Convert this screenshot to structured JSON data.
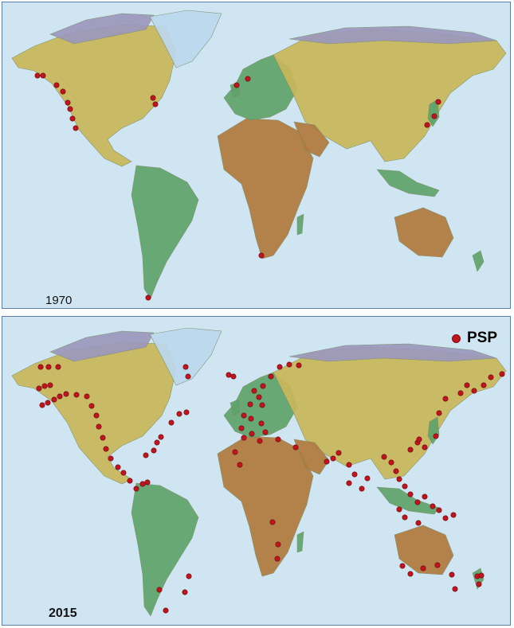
{
  "colors": {
    "ocean": "#cfe6f2",
    "border": "#5b7fa8",
    "marker": "#c0141e",
    "lowland": "#5fa36a",
    "midland": "#c9b85a",
    "highland": "#b07a3c",
    "ice": "#bcd8ee",
    "arctic": "#9c98bd"
  },
  "legend": {
    "label": "PSP",
    "icon": "red-dot-icon"
  },
  "maps": [
    {
      "year_label": "1970",
      "sites": [
        [
          44,
          92
        ],
        [
          51,
          92
        ],
        [
          68,
          104
        ],
        [
          76,
          112
        ],
        [
          82,
          126
        ],
        [
          85,
          134
        ],
        [
          88,
          146
        ],
        [
          92,
          158
        ],
        [
          189,
          120
        ],
        [
          192,
          128
        ],
        [
          294,
          104
        ],
        [
          308,
          96
        ],
        [
          533,
          154
        ],
        [
          542,
          143
        ],
        [
          547,
          125
        ],
        [
          325,
          318
        ],
        [
          183,
          371
        ]
      ]
    },
    {
      "year_label": "2015",
      "sites": [
        [
          48,
          63
        ],
        [
          58,
          63
        ],
        [
          70,
          63
        ],
        [
          46,
          90
        ],
        [
          53,
          87
        ],
        [
          60,
          86
        ],
        [
          50,
          111
        ],
        [
          57,
          108
        ],
        [
          65,
          104
        ],
        [
          72,
          100
        ],
        [
          80,
          97
        ],
        [
          93,
          98
        ],
        [
          106,
          100
        ],
        [
          112,
          112
        ],
        [
          118,
          124
        ],
        [
          121,
          138
        ],
        [
          126,
          152
        ],
        [
          130,
          166
        ],
        [
          136,
          178
        ],
        [
          145,
          189
        ],
        [
          152,
          196
        ],
        [
          160,
          206
        ],
        [
          168,
          216
        ],
        [
          176,
          210
        ],
        [
          182,
          208
        ],
        [
          180,
          174
        ],
        [
          190,
          168
        ],
        [
          194,
          158
        ],
        [
          199,
          151
        ],
        [
          212,
          133
        ],
        [
          222,
          122
        ],
        [
          231,
          120
        ],
        [
          230,
          63
        ],
        [
          233,
          75
        ],
        [
          284,
          73
        ],
        [
          290,
          75
        ],
        [
          348,
          63
        ],
        [
          360,
          60
        ],
        [
          372,
          61
        ],
        [
          337,
          75
        ],
        [
          327,
          87
        ],
        [
          316,
          93
        ],
        [
          322,
          101
        ],
        [
          311,
          110
        ],
        [
          326,
          111
        ],
        [
          303,
          124
        ],
        [
          312,
          128
        ],
        [
          325,
          134
        ],
        [
          300,
          140
        ],
        [
          313,
          147
        ],
        [
          330,
          145
        ],
        [
          303,
          152
        ],
        [
          323,
          156
        ],
        [
          346,
          154
        ],
        [
          368,
          164
        ],
        [
          292,
          170
        ],
        [
          298,
          186
        ],
        [
          407,
          182
        ],
        [
          415,
          178
        ],
        [
          422,
          171
        ],
        [
          435,
          186
        ],
        [
          442,
          198
        ],
        [
          435,
          209
        ],
        [
          451,
          216
        ],
        [
          458,
          203
        ],
        [
          479,
          176
        ],
        [
          488,
          183
        ],
        [
          494,
          194
        ],
        [
          498,
          204
        ],
        [
          505,
          213
        ],
        [
          512,
          223
        ],
        [
          521,
          233
        ],
        [
          530,
          226
        ],
        [
          540,
          238
        ],
        [
          548,
          243
        ],
        [
          556,
          253
        ],
        [
          566,
          249
        ],
        [
          498,
          242
        ],
        [
          505,
          252
        ],
        [
          522,
          259
        ],
        [
          512,
          167
        ],
        [
          521,
          158
        ],
        [
          523,
          154
        ],
        [
          530,
          164
        ],
        [
          544,
          150
        ],
        [
          548,
          121
        ],
        [
          556,
          103
        ],
        [
          575,
          96
        ],
        [
          583,
          86
        ],
        [
          592,
          93
        ],
        [
          604,
          86
        ],
        [
          613,
          76
        ],
        [
          627,
          72
        ],
        [
          339,
          258
        ],
        [
          346,
          286
        ],
        [
          345,
          304
        ],
        [
          502,
          313
        ],
        [
          512,
          323
        ],
        [
          528,
          316
        ],
        [
          546,
          312
        ],
        [
          564,
          324
        ],
        [
          568,
          342
        ],
        [
          598,
          336
        ],
        [
          596,
          326
        ],
        [
          601,
          325
        ],
        [
          229,
          346
        ],
        [
          234,
          326
        ],
        [
          197,
          343
        ],
        [
          205,
          369
        ]
      ]
    }
  ]
}
